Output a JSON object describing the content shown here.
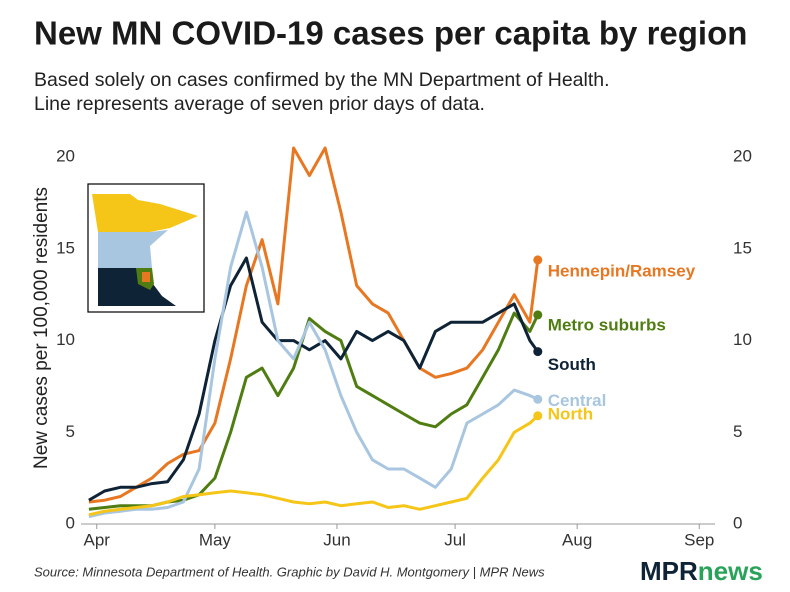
{
  "chart_data": {
    "type": "line",
    "title": "New MN COVID-19 cases per capita by region",
    "subtitle": [
      "Based solely on cases confirmed by the MN Department of Health.",
      "Line represents average of seven prior days of data."
    ],
    "y_label": "New cases per 100,000 residents",
    "source": "Source: Minnesota Department of Health. Graphic by David H. Montgomery | MPR News",
    "logo": [
      "MPR",
      "news"
    ],
    "x": [
      -2,
      2,
      6,
      10,
      14,
      18,
      22,
      26,
      30,
      34,
      38,
      42,
      46,
      50,
      54,
      58,
      62,
      66,
      70,
      74,
      78,
      82,
      86,
      90,
      94,
      98,
      102,
      106,
      110,
      112
    ],
    "xlim": [
      -4,
      157
    ],
    "xticks": [
      {
        "value": 0,
        "label": "Apr"
      },
      {
        "value": 30,
        "label": "May"
      },
      {
        "value": 61,
        "label": "Jun"
      },
      {
        "value": 91,
        "label": "Jul"
      },
      {
        "value": 122,
        "label": "Aug"
      },
      {
        "value": 153,
        "label": "Sep"
      }
    ],
    "ylim": [
      0,
      20.5
    ],
    "yticks": [
      0,
      5,
      10,
      15,
      20
    ],
    "y2lim": [
      0,
      20.5
    ],
    "y2ticks": [
      0,
      5,
      10,
      15,
      20
    ],
    "series": [
      {
        "name": "Hennepin/Ramsey",
        "color": "#e87722",
        "values": [
          1.2,
          1.3,
          1.5,
          2.0,
          2.5,
          3.3,
          3.8,
          4.0,
          5.5,
          9,
          13,
          15.5,
          12,
          20.5,
          19,
          20.5,
          17,
          13,
          12,
          11.5,
          10,
          8.5,
          8,
          8.2,
          8.5,
          9.5,
          11,
          12.5,
          11,
          14.4
        ]
      },
      {
        "name": "Metro suburbs",
        "color": "#4f7d12",
        "values": [
          0.8,
          0.9,
          1.0,
          1.0,
          1.0,
          1.2,
          1.3,
          1.6,
          2.5,
          5,
          8,
          8.5,
          7,
          8.5,
          11.2,
          10.5,
          10,
          7.5,
          7,
          6.5,
          6,
          5.5,
          5.3,
          6,
          6.5,
          8,
          9.5,
          11.5,
          10.5,
          11.4
        ]
      },
      {
        "name": "South",
        "color": "#0f2336",
        "values": [
          1.3,
          1.8,
          2.0,
          2.0,
          2.2,
          2.3,
          3.5,
          6,
          10,
          13,
          14.5,
          11,
          10,
          10,
          9.5,
          10,
          9,
          10.5,
          10,
          10.5,
          10,
          8.5,
          10.5,
          11,
          11,
          11,
          11.5,
          12,
          10,
          9.4
        ]
      },
      {
        "name": "Central",
        "color": "#a9c6e0",
        "values": [
          0.4,
          0.6,
          0.7,
          0.8,
          0.8,
          0.9,
          1.2,
          3,
          9,
          14,
          17,
          14,
          10,
          9,
          11,
          9.5,
          7,
          5,
          3.5,
          3,
          3,
          2.5,
          2,
          3,
          5.5,
          6,
          6.5,
          7.3,
          7,
          6.8
        ]
      },
      {
        "name": "North",
        "color": "#f5c518",
        "values": [
          0.5,
          0.7,
          0.8,
          0.9,
          1.0,
          1.2,
          1.5,
          1.6,
          1.7,
          1.8,
          1.7,
          1.6,
          1.4,
          1.2,
          1.1,
          1.2,
          1.0,
          1.1,
          1.2,
          0.9,
          1.0,
          0.8,
          1.0,
          1.2,
          1.4,
          2.5,
          3.5,
          5,
          5.5,
          5.9
        ]
      }
    ]
  }
}
